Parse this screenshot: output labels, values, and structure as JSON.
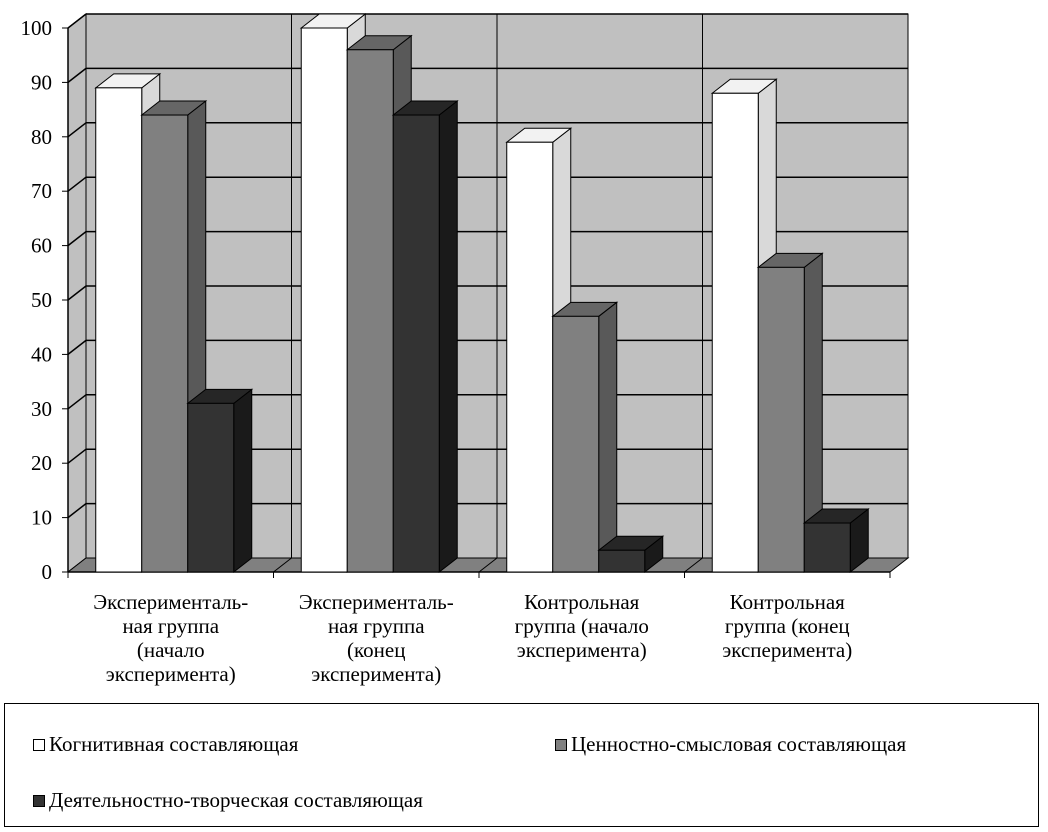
{
  "chart_data": {
    "type": "bar",
    "title": "",
    "xlabel": "",
    "ylabel": "",
    "ylim": [
      0,
      100
    ],
    "yticks": [
      0,
      10,
      20,
      30,
      40,
      50,
      60,
      70,
      80,
      90,
      100
    ],
    "tick_labels": [
      "0",
      "10",
      "20",
      "30",
      "40",
      "50",
      "60",
      "70",
      "80",
      "90",
      "100"
    ],
    "categories": [
      "Эксперименталь-\nная группа\n(начало\nэксперимента)",
      "Эксперименталь-\nная  группа\n(конец\nэксперимента)",
      "Контрольная\nгруппа (начало\nэксперимента)",
      "Контрольная\nгруппа (конец\nэксперимента)"
    ],
    "series": [
      {
        "name": "Когнитивная составляющая",
        "values": [
          89,
          100,
          79,
          88
        ]
      },
      {
        "name": "Ценностно-смысловая составляющая",
        "values": [
          84,
          96,
          47,
          56
        ]
      },
      {
        "name": "Деятельностно-творческая составляющая",
        "values": [
          31,
          84,
          4,
          9
        ]
      }
    ],
    "grid": true,
    "legend_position": "bottom",
    "style": "3d-bar"
  },
  "colors": {
    "series_front": [
      "#ffffff",
      "#808080",
      "#333333"
    ],
    "series_side": [
      "#d9d9d9",
      "#595959",
      "#1a1a1a"
    ],
    "series_top": [
      "#f2f2f2",
      "#666666",
      "#262626"
    ],
    "wall": "#c0c0c0",
    "floor": "#808080",
    "grid": "#000000"
  }
}
